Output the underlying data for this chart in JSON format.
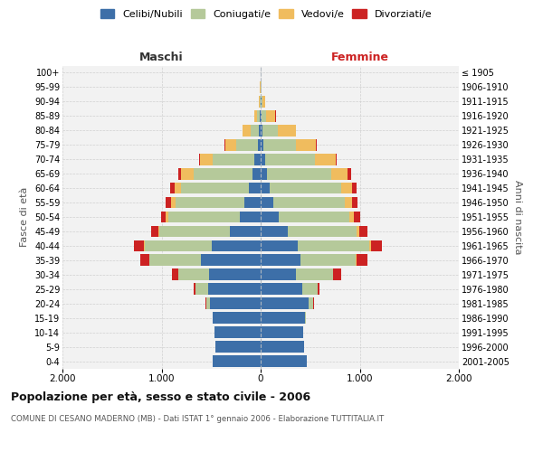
{
  "age_groups_bottom_to_top": [
    "0-4",
    "5-9",
    "10-14",
    "15-19",
    "20-24",
    "25-29",
    "30-34",
    "35-39",
    "40-44",
    "45-49",
    "50-54",
    "55-59",
    "60-64",
    "65-69",
    "70-74",
    "75-79",
    "80-84",
    "85-89",
    "90-94",
    "95-99",
    "100+"
  ],
  "birth_years_bottom_to_top": [
    "2001-2005",
    "1996-2000",
    "1991-1995",
    "1986-1990",
    "1981-1985",
    "1976-1980",
    "1971-1975",
    "1966-1970",
    "1961-1965",
    "1956-1960",
    "1951-1955",
    "1946-1950",
    "1941-1945",
    "1936-1940",
    "1931-1935",
    "1926-1930",
    "1921-1925",
    "1916-1920",
    "1911-1915",
    "1906-1910",
    "≤ 1905"
  ],
  "colors": {
    "celibi": "#3d6fa8",
    "coniugati": "#b5c99a",
    "vedovi": "#f0bc5e",
    "divorziati": "#cc2222"
  },
  "maschi": {
    "celibi": [
      480,
      460,
      470,
      480,
      510,
      530,
      520,
      600,
      490,
      310,
      210,
      160,
      120,
      80,
      60,
      30,
      20,
      5,
      3,
      2,
      2
    ],
    "coniugati": [
      0,
      0,
      0,
      5,
      40,
      130,
      310,
      520,
      680,
      710,
      720,
      700,
      680,
      600,
      420,
      220,
      80,
      30,
      5,
      2,
      0
    ],
    "vedovi": [
      0,
      0,
      0,
      0,
      2,
      2,
      2,
      5,
      5,
      15,
      25,
      45,
      70,
      120,
      130,
      110,
      80,
      25,
      8,
      1,
      0
    ],
    "divorziati": [
      0,
      0,
      0,
      0,
      5,
      10,
      60,
      90,
      100,
      70,
      50,
      55,
      45,
      30,
      10,
      5,
      3,
      2,
      0,
      0,
      0
    ]
  },
  "femmine": {
    "celibi": [
      470,
      440,
      430,
      450,
      480,
      420,
      360,
      400,
      370,
      270,
      185,
      130,
      90,
      60,
      45,
      25,
      15,
      8,
      5,
      2,
      2
    ],
    "coniugati": [
      0,
      0,
      0,
      5,
      50,
      155,
      370,
      560,
      730,
      700,
      710,
      720,
      720,
      650,
      500,
      330,
      160,
      50,
      15,
      3,
      0
    ],
    "vedovi": [
      0,
      0,
      0,
      0,
      2,
      3,
      5,
      8,
      10,
      25,
      45,
      70,
      110,
      170,
      210,
      200,
      180,
      90,
      30,
      5,
      2
    ],
    "divorziati": [
      0,
      0,
      0,
      0,
      8,
      15,
      80,
      110,
      110,
      80,
      60,
      60,
      50,
      35,
      12,
      8,
      5,
      3,
      0,
      0,
      0
    ]
  },
  "title": "Popolazione per età, sesso e stato civile - 2006",
  "subtitle": "COMUNE DI CESANO MADERNO (MB) - Dati ISTAT 1° gennaio 2006 - Elaborazione TUTTITALIA.IT",
  "header_maschi": "Maschi",
  "header_femmine": "Femmine",
  "ylabel_left": "Fasce di età",
  "ylabel_right": "Anni di nascita",
  "xlim": 2000,
  "xtick_labels": [
    "2.000",
    "1.000",
    "0",
    "1.000",
    "2.000"
  ],
  "legend_labels": [
    "Celibi/Nubili",
    "Coniugati/e",
    "Vedovi/e",
    "Divorziati/e"
  ],
  "bg_color": "#f2f2f2",
  "grid_color": "#cccccc"
}
